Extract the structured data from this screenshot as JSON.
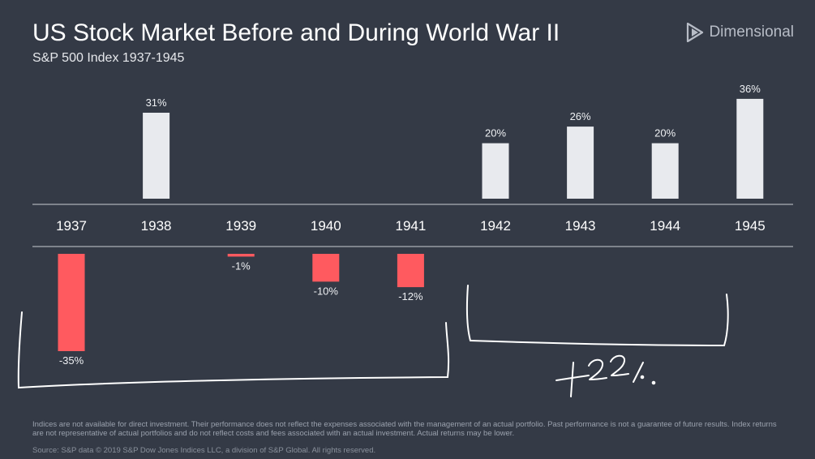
{
  "header": {
    "title": "US Stock Market Before and During World War II",
    "subtitle": "S&P 500 Index 1937-1945",
    "logo_text": "Dimensional"
  },
  "annotation": {
    "handwritten_text": "+22%"
  },
  "footer": {
    "disclaimer": "Indices are not available for direct investment. Their performance does not reflect the expenses associated with the management of an actual portfolio. Past performance is not a guarantee of future results. Index returns are not representative of actual portfolios and do not reflect costs and fees associated with an actual investment. Actual returns may be lower.",
    "source": "Source: S&P data © 2019 S&P Dow Jones Indices LLC, a division of S&P Global. All rights reserved."
  },
  "colors": {
    "background": "#343a46",
    "positive_bar": "#e8eaee",
    "negative_bar": "#ff5a5f",
    "axis_line": "#c9ccd2"
  },
  "chart_data": {
    "type": "bar",
    "title": "US Stock Market Before and During World War II",
    "subtitle": "S&P 500 Index 1937-1945",
    "categories": [
      "1937",
      "1938",
      "1939",
      "1940",
      "1941",
      "1942",
      "1943",
      "1944",
      "1945"
    ],
    "values": [
      -35,
      31,
      -1,
      -10,
      -12,
      20,
      26,
      20,
      36
    ],
    "data_labels": [
      "-35%",
      "31%",
      "-1%",
      "-10%",
      "-12%",
      "20%",
      "26%",
      "20%",
      "36%"
    ],
    "unit": "%",
    "ylim": [
      -35,
      36
    ],
    "grid": false,
    "legend": "none"
  }
}
